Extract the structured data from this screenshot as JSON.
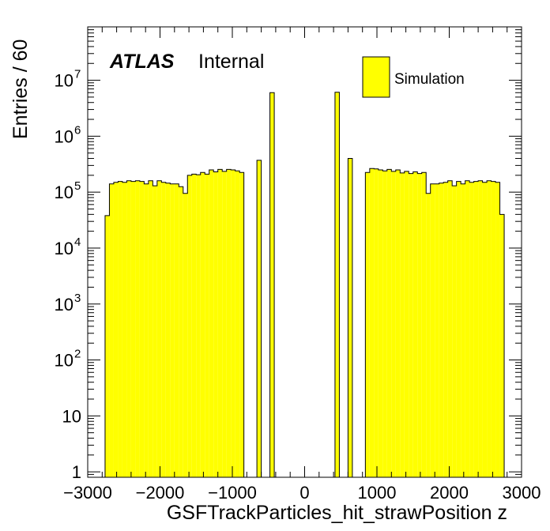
{
  "chart_data": {
    "type": "bar",
    "subtype": "histogram",
    "xlabel": "GSFTrackParticles_hit_strawPosition z",
    "ylabel": "Entries / 60",
    "xlim": [
      -3000,
      3000
    ],
    "ylim": [
      0.8,
      90000000
    ],
    "y_scale": "log",
    "bin_width": 60,
    "fill_color": "#ffff00",
    "line_color": "#000000",
    "grid": false,
    "legend": {
      "placement": "top-right",
      "entries": [
        {
          "label": "Simulation"
        }
      ]
    },
    "annotations": {
      "atlas": "ATLAS",
      "status": "Internal"
    },
    "x_tick_labels": [
      "−3000",
      "−2000",
      "−1000",
      "0",
      "1000",
      "2000",
      "3000"
    ],
    "y_tick_labels": [
      {
        "value": 1,
        "base": "1",
        "exp": ""
      },
      {
        "value": 10,
        "base": "10",
        "exp": ""
      },
      {
        "value": 100,
        "base": "10",
        "exp": "2"
      },
      {
        "value": 1000,
        "base": "10",
        "exp": "3"
      },
      {
        "value": 10000,
        "base": "10",
        "exp": "4"
      },
      {
        "value": 100000,
        "base": "10",
        "exp": "5"
      },
      {
        "value": 1000000,
        "base": "10",
        "exp": "6"
      },
      {
        "value": 10000000,
        "base": "10",
        "exp": "7"
      }
    ],
    "bins": [
      [
        -2760,
        -2700,
        38000
      ],
      [
        -2700,
        -2640,
        140000
      ],
      [
        -2640,
        -2580,
        150000
      ],
      [
        -2580,
        -2520,
        155000
      ],
      [
        -2520,
        -2460,
        150000
      ],
      [
        -2460,
        -2400,
        160000
      ],
      [
        -2400,
        -2340,
        155000
      ],
      [
        -2340,
        -2280,
        160000
      ],
      [
        -2280,
        -2220,
        155000
      ],
      [
        -2220,
        -2160,
        140000
      ],
      [
        -2160,
        -2100,
        160000
      ],
      [
        -2100,
        -2040,
        130000
      ],
      [
        -2040,
        -1980,
        160000
      ],
      [
        -1980,
        -1920,
        150000
      ],
      [
        -1920,
        -1860,
        145000
      ],
      [
        -1860,
        -1800,
        140000
      ],
      [
        -1800,
        -1740,
        140000
      ],
      [
        -1740,
        -1680,
        125000
      ],
      [
        -1680,
        -1620,
        95000
      ],
      [
        -1620,
        -1560,
        200000
      ],
      [
        -1560,
        -1500,
        210000
      ],
      [
        -1500,
        -1440,
        205000
      ],
      [
        -1440,
        -1380,
        225000
      ],
      [
        -1380,
        -1320,
        210000
      ],
      [
        -1320,
        -1260,
        250000
      ],
      [
        -1260,
        -1200,
        230000
      ],
      [
        -1200,
        -1140,
        255000
      ],
      [
        -1140,
        -1080,
        235000
      ],
      [
        -1080,
        -1020,
        255000
      ],
      [
        -1020,
        -960,
        250000
      ],
      [
        -960,
        -900,
        240000
      ],
      [
        -900,
        -840,
        225000
      ],
      [
        -660,
        -600,
        370000
      ],
      [
        -480,
        -420,
        6000000
      ],
      [
        420,
        480,
        6100000
      ],
      [
        600,
        660,
        400000
      ],
      [
        840,
        900,
        225000
      ],
      [
        900,
        960,
        265000
      ],
      [
        960,
        1020,
        260000
      ],
      [
        1020,
        1080,
        250000
      ],
      [
        1080,
        1140,
        240000
      ],
      [
        1140,
        1200,
        255000
      ],
      [
        1200,
        1260,
        235000
      ],
      [
        1260,
        1320,
        250000
      ],
      [
        1320,
        1380,
        220000
      ],
      [
        1380,
        1440,
        235000
      ],
      [
        1440,
        1500,
        215000
      ],
      [
        1500,
        1560,
        230000
      ],
      [
        1560,
        1620,
        215000
      ],
      [
        1620,
        1680,
        225000
      ],
      [
        1680,
        1740,
        95000
      ],
      [
        1740,
        1800,
        140000
      ],
      [
        1800,
        1860,
        140000
      ],
      [
        1860,
        1920,
        145000
      ],
      [
        1920,
        1980,
        150000
      ],
      [
        1980,
        2040,
        160000
      ],
      [
        2040,
        2100,
        130000
      ],
      [
        2100,
        2160,
        155000
      ],
      [
        2160,
        2220,
        140000
      ],
      [
        2220,
        2280,
        160000
      ],
      [
        2280,
        2340,
        150000
      ],
      [
        2340,
        2400,
        155000
      ],
      [
        2400,
        2460,
        160000
      ],
      [
        2460,
        2520,
        150000
      ],
      [
        2520,
        2580,
        160000
      ],
      [
        2580,
        2640,
        155000
      ],
      [
        2640,
        2700,
        150000
      ],
      [
        2700,
        2760,
        40000
      ]
    ]
  }
}
